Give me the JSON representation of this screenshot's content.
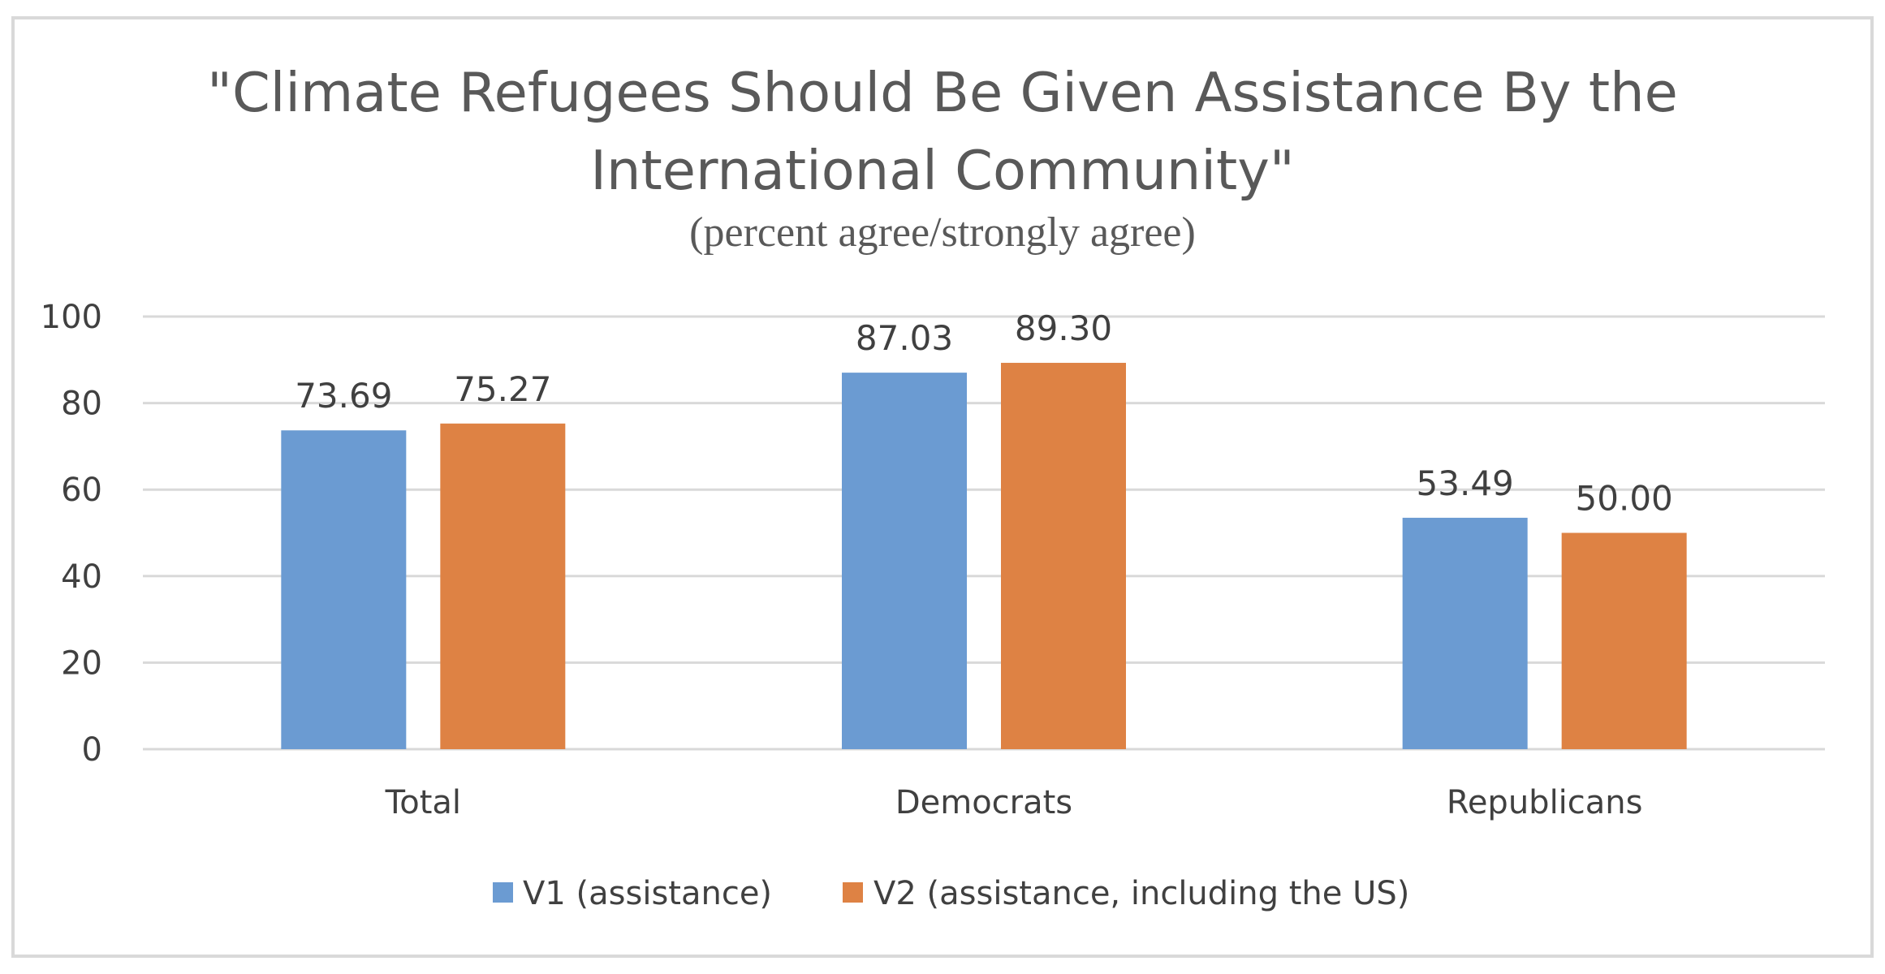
{
  "chart_data": {
    "type": "bar",
    "title_line1": "\"Climate Refugees Should Be Given Assistance By the",
    "title_line2": "International Community\"",
    "subtitle": "(percent agree/strongly agree)",
    "xlabel": "",
    "ylabel": "",
    "categories": [
      "Total",
      "Democrats",
      "Republicans"
    ],
    "series": [
      {
        "name": "V1 (assistance)",
        "values": [
          73.69,
          87.03,
          53.49
        ],
        "labels": [
          "73.69",
          "87.03",
          "53.49"
        ],
        "color": "#6b9bd2"
      },
      {
        "name": "V2 (assistance, including the US)",
        "values": [
          75.27,
          89.3,
          50.0
        ],
        "labels": [
          "75.27",
          "89.30",
          "50.00"
        ],
        "color": "#de8244"
      }
    ],
    "ylim": [
      0,
      100
    ],
    "yticks": [
      "0",
      "20",
      "40",
      "60",
      "80",
      "100"
    ],
    "grid": true,
    "legend_position": "bottom"
  }
}
